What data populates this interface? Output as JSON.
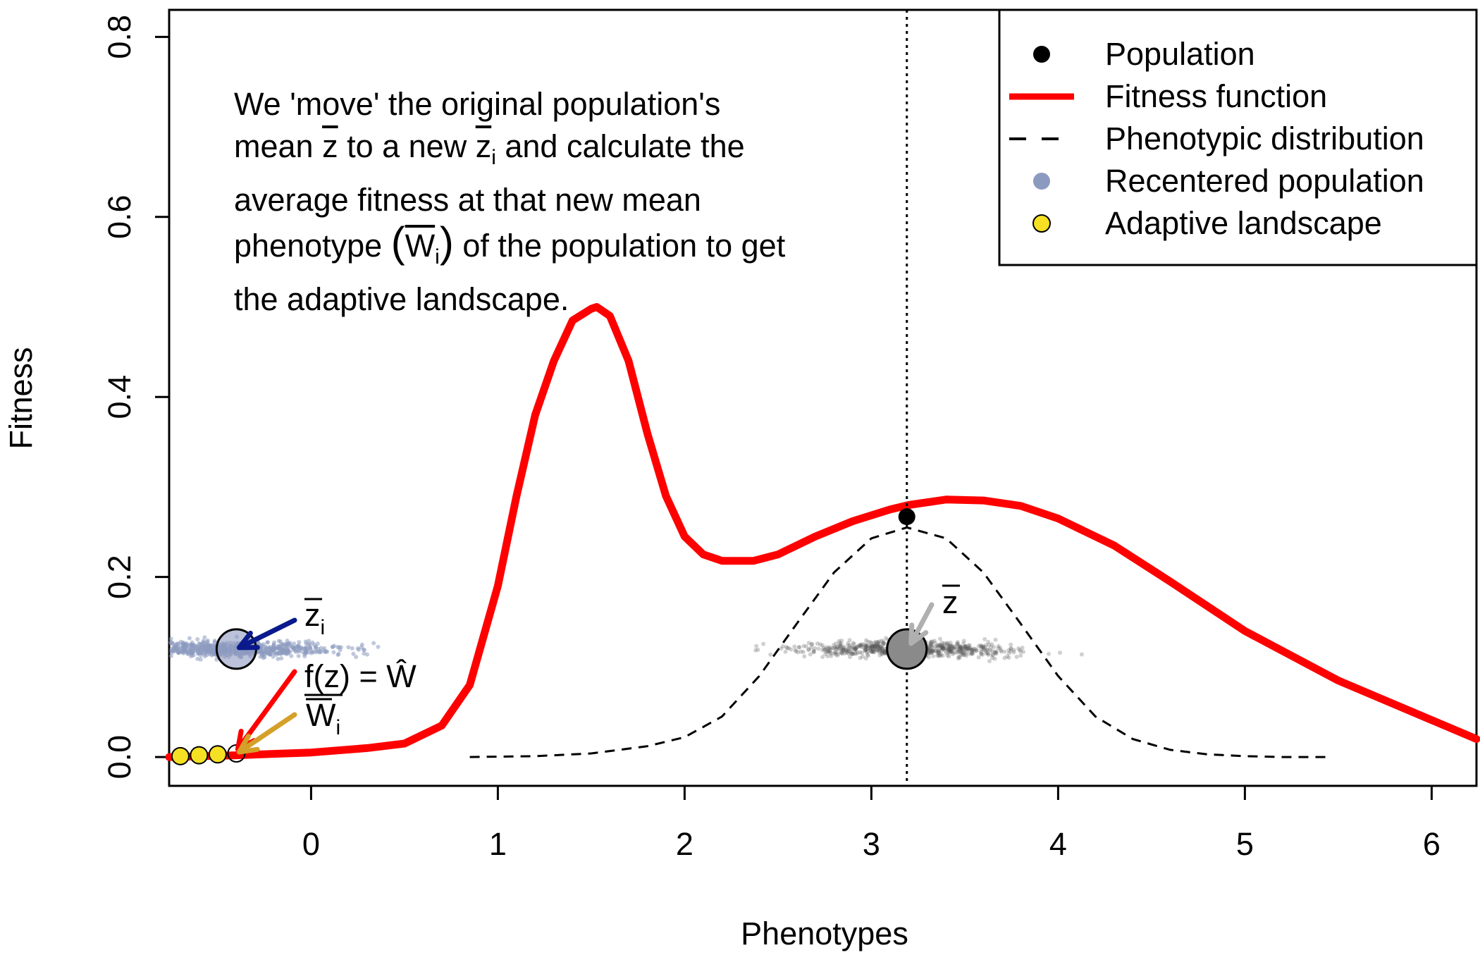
{
  "chart_data": {
    "type": "line",
    "xlabel": "Phenotypes",
    "ylabel": "Fitness",
    "xlim": [
      -0.76,
      6.24
    ],
    "ylim": [
      -0.032,
      0.83
    ],
    "x_ticks": [
      "0",
      "1",
      "2",
      "3",
      "4",
      "5",
      "6"
    ],
    "y_ticks": [
      "0.0",
      "0.2",
      "0.4",
      "0.6",
      "0.8"
    ],
    "grid": false,
    "legend_position": "top-right",
    "legend": [
      {
        "label": "Population",
        "symbol": "filled-circle",
        "color": "#000000"
      },
      {
        "label": "Fitness function",
        "symbol": "line",
        "color": "#ff0000"
      },
      {
        "label": "Phenotypic distribution",
        "symbol": "dashed-line",
        "color": "#000000"
      },
      {
        "label": "Recentered population",
        "symbol": "circle",
        "color": "#8d9ac0"
      },
      {
        "label": "Adaptive landscape",
        "symbol": "circle",
        "color": "#f5e024"
      }
    ],
    "series": [
      {
        "name": "Fitness function",
        "color": "#ff0000",
        "x": [
          -0.76,
          -0.4,
          0,
          0.3,
          0.5,
          0.7,
          0.85,
          1.0,
          1.1,
          1.2,
          1.3,
          1.4,
          1.5,
          1.53,
          1.6,
          1.7,
          1.8,
          1.9,
          2.0,
          2.1,
          2.2,
          2.3,
          2.37,
          2.5,
          2.7,
          2.9,
          3.1,
          3.2,
          3.4,
          3.6,
          3.8,
          4.0,
          4.3,
          4.6,
          5.0,
          5.5,
          6.24
        ],
        "y": [
          0.0,
          0.002,
          0.005,
          0.01,
          0.015,
          0.035,
          0.08,
          0.19,
          0.29,
          0.38,
          0.44,
          0.485,
          0.498,
          0.5,
          0.49,
          0.44,
          0.36,
          0.29,
          0.245,
          0.225,
          0.218,
          0.218,
          0.218,
          0.225,
          0.245,
          0.262,
          0.275,
          0.28,
          0.286,
          0.285,
          0.279,
          0.265,
          0.235,
          0.195,
          0.14,
          0.085,
          0.02
        ]
      },
      {
        "name": "Phenotypic distribution",
        "color": "#000000",
        "x": [
          0.85,
          1.2,
          1.5,
          1.8,
          2.0,
          2.2,
          2.4,
          2.6,
          2.8,
          3.0,
          3.19,
          3.4,
          3.6,
          3.8,
          4.0,
          4.2,
          4.4,
          4.6,
          4.8,
          5.0,
          5.2,
          5.45
        ],
        "y": [
          0.0,
          0.001,
          0.004,
          0.012,
          0.022,
          0.045,
          0.09,
          0.148,
          0.205,
          0.243,
          0.255,
          0.243,
          0.205,
          0.148,
          0.09,
          0.045,
          0.02,
          0.008,
          0.003,
          0.001,
          0.0,
          0.0
        ]
      }
    ],
    "population_point": {
      "x": 3.19,
      "y": 0.267
    },
    "population_mean": 3.19,
    "adaptive_landscape_points": {
      "x": [
        -0.7,
        -0.6,
        -0.5,
        -0.4
      ],
      "y": [
        0.001,
        0.002,
        0.003,
        0.004
      ]
    },
    "recentered_mean": -0.4,
    "cloud_y": 0.12,
    "labels": {
      "zbar": "z",
      "zbar_i": "z",
      "sub_i": "i",
      "f_of_z": "f(z) = Ŵ",
      "w_i": "W"
    }
  },
  "annotation": {
    "line1": "We 'move' the original population's",
    "line2_a": "mean ",
    "line2_z": "z",
    "line2_b": " to a new ",
    "line2_zi": "z",
    "line2_sub": "i",
    "line2_c": " and calculate the",
    "line3": "average fitness at that new mean",
    "line4_a": "phenotype ",
    "line4_open": "(",
    "line4_w": "W",
    "line4_sub": "i",
    "line4_close": ")",
    "line4_b": " of the population to get",
    "line5": "the adaptive landscape."
  },
  "colors": {
    "fitness": "#ff0000",
    "recentered": "#8d9ac0",
    "adaptive": "#f5e024",
    "population_cloud": "#555555",
    "arrow_blue": "#0a1a8c",
    "arrow_red": "#ff0000",
    "arrow_gold": "#d4a028",
    "arrow_gray": "#b0b0b0"
  }
}
